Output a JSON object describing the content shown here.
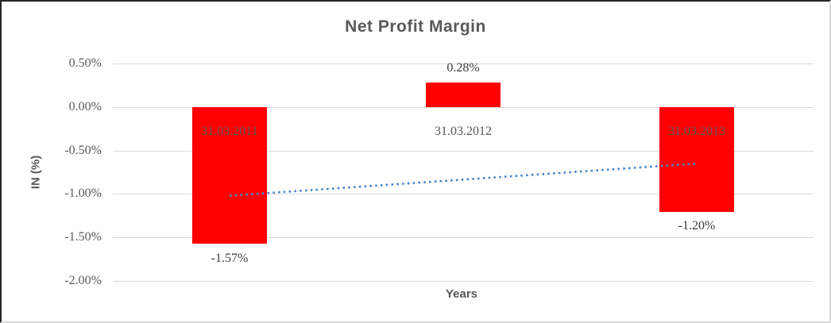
{
  "chart_data": {
    "type": "bar",
    "title": "Net Profit Margin",
    "xlabel": "Years",
    "ylabel": "IN (%)",
    "categories": [
      "31.03.2011",
      "31.03.2012",
      "31.03.2013"
    ],
    "values": [
      -1.57,
      0.28,
      -1.2
    ],
    "data_labels": [
      "-1.57%",
      "0.28%",
      "-1.20%"
    ],
    "unit": "percent",
    "ylim": [
      -2.0,
      0.5
    ],
    "yticks": [
      {
        "value": 0.5,
        "label": "0.50%"
      },
      {
        "value": 0.0,
        "label": "0.00%"
      },
      {
        "value": -0.5,
        "label": "-0.50%"
      },
      {
        "value": -1.0,
        "label": "-1.00%"
      },
      {
        "value": -1.5,
        "label": "-1.50%"
      },
      {
        "value": -2.0,
        "label": "-2.00%"
      }
    ],
    "grid": true,
    "legend": false,
    "colors": {
      "bar": "#FF0000",
      "gridline": "#D9D9D9",
      "axis_text": "#595959",
      "data_label_text": "#3B3B3B",
      "title_text": "#595959",
      "trendline": "#4A86C8"
    },
    "trendline": {
      "type": "linear",
      "style": "dotted",
      "color": "#4A86C8",
      "start_value": -1.02,
      "end_value": -0.65
    }
  }
}
